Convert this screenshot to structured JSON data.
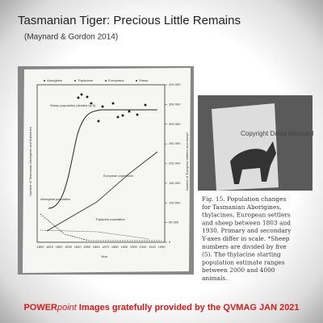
{
  "header": {
    "title": "Tasmanian Tiger: Precious Little Remains",
    "citation": "(Maynard & Gordon 2014)"
  },
  "figure": {
    "legend": [
      "Aborigines",
      "Thylacines",
      "Europeans",
      "Sheep"
    ],
    "annotations": [
      "Sheep population (divided by 5)",
      "European population",
      "Aboriginal population",
      "Thylacine population"
    ],
    "x_label": "Year",
    "left_axis_label": "Number of Tasmanian Aborigines and thylacines",
    "right_axis_label": "Number of European settlers and sheep*",
    "right_ticks": [
      "400 000",
      "350 000",
      "300 000",
      "250 000",
      "200 000",
      "150 000",
      "100 000",
      "50 000",
      "0"
    ],
    "x_ticks": [
      "1800",
      "1810",
      "1820",
      "1830",
      "1840",
      "1850",
      "1860",
      "1870",
      "1880",
      "1890",
      "1900",
      "1910",
      "1920",
      "1930"
    ]
  },
  "book": {
    "copyright": "Copyright David Maynard"
  },
  "caption": {
    "lines": [
      "Fig. 15. Population changes",
      "for Tasmanian Aborigines,",
      "thylacines, European settlers",
      "and sheep between 1803 and",
      "1930. Primary and secondary",
      "Y-axes differ in scale. *Sheep",
      "numbers are divided by five",
      "(5). The thylacine starting",
      "population estimate ranges",
      "between 2000 and 4000",
      "animals."
    ]
  },
  "footer": {
    "power": "POWER",
    "point": "point",
    "rest": " Images gratefully provided by the QVMAG JAN 2021"
  }
}
